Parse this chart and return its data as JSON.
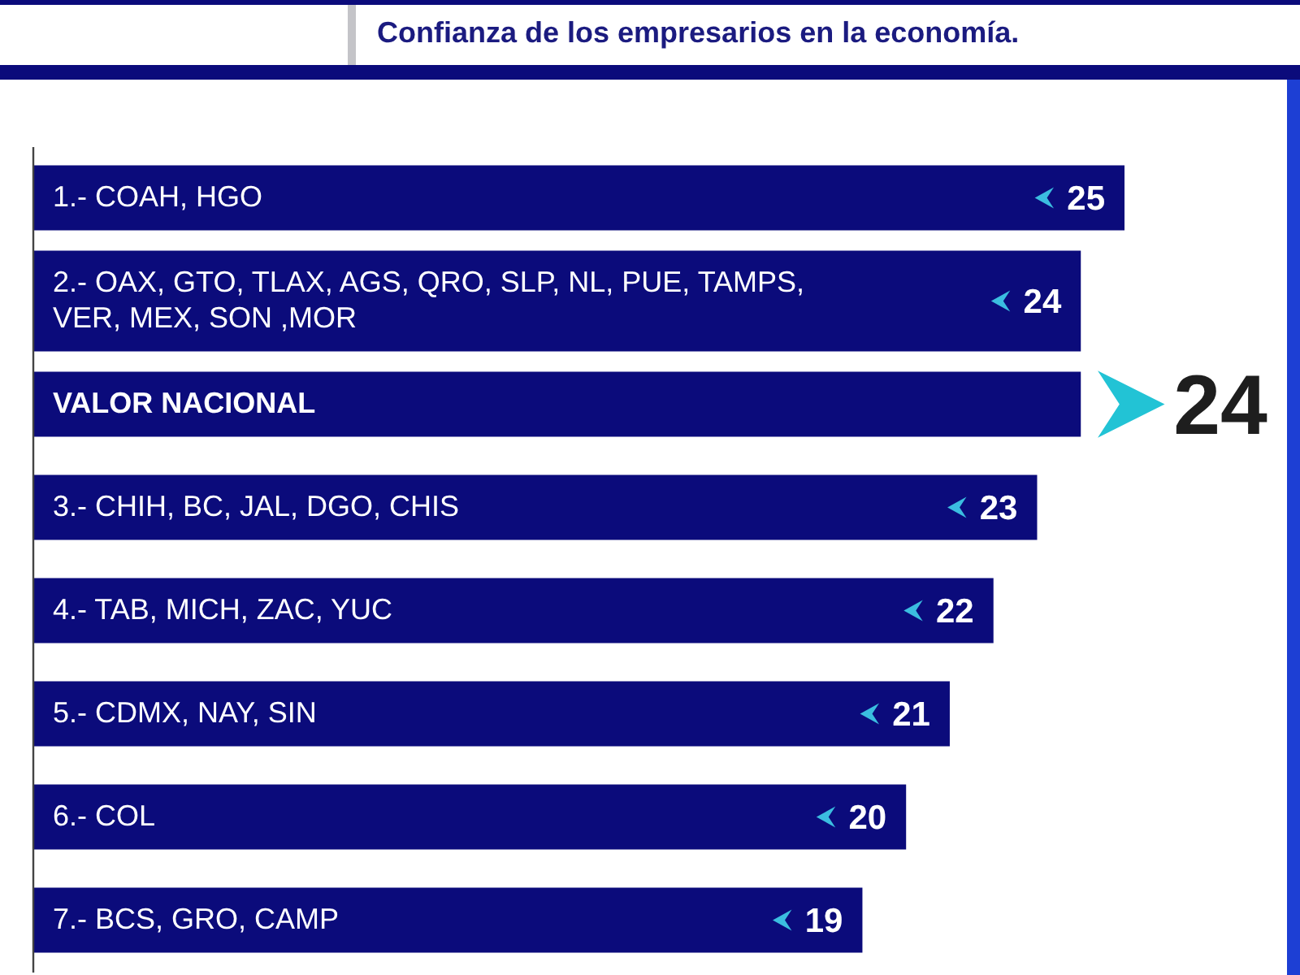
{
  "chart_data": {
    "type": "bar",
    "orientation": "horizontal",
    "title": "Confianza de los empresarios en la economía.",
    "categories": [
      "1.- COAH, HGO",
      "2.- OAX, GTO, TLAX, AGS, QRO, SLP, NL, PUE, TAMPS, VER, MEX, SON ,MOR",
      "VALOR NACIONAL",
      "3.- CHIH, BC, JAL, DGO, CHIS",
      "4.- TAB, MICH, ZAC, YUC",
      "5.- CDMX, NAY, SIN",
      "6.- COL",
      "7.- BCS, GRO, CAMP"
    ],
    "values": [
      25,
      24,
      24,
      23,
      22,
      21,
      20,
      19
    ],
    "color": "#0b0b7b",
    "value_labels": [
      "25",
      "24",
      null,
      "23",
      "22",
      "21",
      "20",
      "19"
    ],
    "annotations": [
      {
        "text": "24",
        "x": 24,
        "y": "VALOR NACIONAL"
      }
    ],
    "tick_labels": "y"
  }
}
